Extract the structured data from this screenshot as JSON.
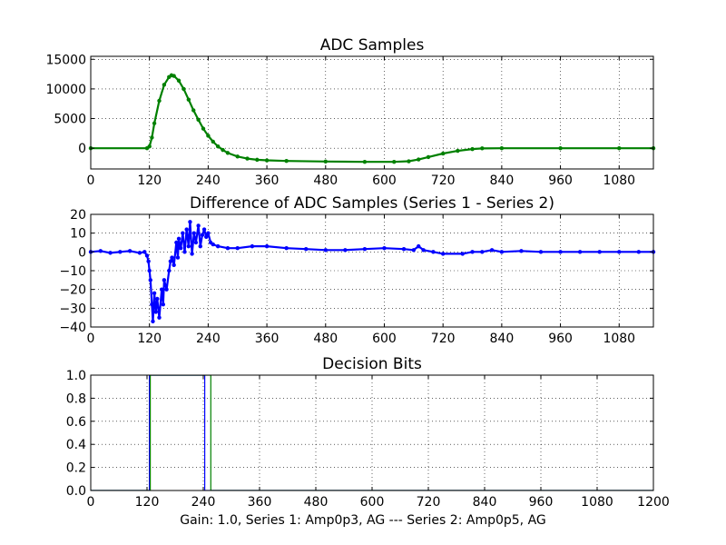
{
  "figure_footer": "Gain: 1.0, Series 1: Amp0p3, AG --- Series 2: Amp0p5, AG",
  "colors": {
    "green": "#008000",
    "blue": "#0000ff"
  },
  "chart_data": [
    {
      "type": "line",
      "title": "ADC Samples",
      "xlabel": "",
      "ylabel": "",
      "xlim": [
        0,
        1150
      ],
      "ylim": [
        -3500,
        15500
      ],
      "x_ticks": [
        0,
        120,
        240,
        360,
        480,
        600,
        720,
        840,
        960,
        1080
      ],
      "y_ticks": [
        0,
        5000,
        10000,
        15000
      ],
      "grid": true,
      "marker": "dot",
      "series": [
        {
          "color": "#008000",
          "points": [
            [
              0,
              0
            ],
            [
              115,
              0
            ],
            [
              120,
              300
            ],
            [
              125,
              1800
            ],
            [
              130,
              4200
            ],
            [
              140,
              8000
            ],
            [
              150,
              10700
            ],
            [
              160,
              12000
            ],
            [
              165,
              12300
            ],
            [
              170,
              12200
            ],
            [
              180,
              11400
            ],
            [
              190,
              10000
            ],
            [
              200,
              8200
            ],
            [
              210,
              6400
            ],
            [
              220,
              4800
            ],
            [
              230,
              3300
            ],
            [
              240,
              2100
            ],
            [
              250,
              1100
            ],
            [
              260,
              300
            ],
            [
              270,
              -300
            ],
            [
              280,
              -800
            ],
            [
              300,
              -1400
            ],
            [
              320,
              -1750
            ],
            [
              340,
              -1950
            ],
            [
              360,
              -2050
            ],
            [
              400,
              -2150
            ],
            [
              480,
              -2250
            ],
            [
              560,
              -2300
            ],
            [
              620,
              -2300
            ],
            [
              650,
              -2200
            ],
            [
              670,
              -1900
            ],
            [
              690,
              -1500
            ],
            [
              720,
              -900
            ],
            [
              750,
              -450
            ],
            [
              780,
              -150
            ],
            [
              800,
              -30
            ],
            [
              840,
              0
            ],
            [
              960,
              0
            ],
            [
              1080,
              0
            ],
            [
              1150,
              0
            ]
          ]
        }
      ]
    },
    {
      "type": "line",
      "title": "Difference of ADC Samples (Series 1 - Series 2)",
      "xlabel": "",
      "ylabel": "",
      "xlim": [
        0,
        1150
      ],
      "ylim": [
        -40,
        20
      ],
      "x_ticks": [
        0,
        120,
        240,
        360,
        480,
        600,
        720,
        840,
        960,
        1080
      ],
      "y_ticks": [
        -40,
        -30,
        -20,
        -10,
        0,
        10,
        20
      ],
      "grid": true,
      "marker": "dot",
      "series": [
        {
          "color": "#0000ff",
          "points": [
            [
              0,
              0
            ],
            [
              20,
              0.5
            ],
            [
              40,
              -0.5
            ],
            [
              60,
              0
            ],
            [
              80,
              0.5
            ],
            [
              100,
              -0.5
            ],
            [
              110,
              0
            ],
            [
              115,
              -2
            ],
            [
              118,
              -5
            ],
            [
              120,
              -10
            ],
            [
              122,
              -15
            ],
            [
              125,
              -28
            ],
            [
              127,
              -37
            ],
            [
              130,
              -22
            ],
            [
              133,
              -32
            ],
            [
              136,
              -25
            ],
            [
              140,
              -35
            ],
            [
              145,
              -20
            ],
            [
              148,
              -28
            ],
            [
              150,
              -15
            ],
            [
              155,
              -20
            ],
            [
              160,
              -10
            ],
            [
              163,
              -5
            ],
            [
              166,
              -3
            ],
            [
              170,
              -7
            ],
            [
              175,
              5
            ],
            [
              178,
              -3
            ],
            [
              180,
              7
            ],
            [
              184,
              2
            ],
            [
              188,
              10
            ],
            [
              192,
              0
            ],
            [
              196,
              12
            ],
            [
              200,
              3
            ],
            [
              203,
              16
            ],
            [
              207,
              -1
            ],
            [
              211,
              10
            ],
            [
              215,
              5
            ],
            [
              220,
              14
            ],
            [
              224,
              3
            ],
            [
              228,
              9
            ],
            [
              232,
              12
            ],
            [
              236,
              8
            ],
            [
              240,
              10
            ],
            [
              245,
              5
            ],
            [
              250,
              4
            ],
            [
              260,
              3
            ],
            [
              280,
              2
            ],
            [
              300,
              2
            ],
            [
              330,
              3
            ],
            [
              360,
              3
            ],
            [
              400,
              2
            ],
            [
              440,
              1.5
            ],
            [
              480,
              1
            ],
            [
              520,
              1
            ],
            [
              560,
              1.5
            ],
            [
              600,
              2
            ],
            [
              640,
              1.5
            ],
            [
              660,
              1
            ],
            [
              670,
              3
            ],
            [
              680,
              1
            ],
            [
              700,
              0
            ],
            [
              720,
              -1
            ],
            [
              760,
              -1
            ],
            [
              780,
              0
            ],
            [
              800,
              0
            ],
            [
              820,
              1
            ],
            [
              840,
              0
            ],
            [
              880,
              0.5
            ],
            [
              920,
              0
            ],
            [
              960,
              0
            ],
            [
              1000,
              0
            ],
            [
              1040,
              0
            ],
            [
              1080,
              0
            ],
            [
              1120,
              0
            ],
            [
              1150,
              0
            ]
          ]
        }
      ]
    },
    {
      "type": "line",
      "title": "Decision Bits",
      "xlabel": "",
      "ylabel": "",
      "xlim": [
        0,
        1200
      ],
      "ylim": [
        0,
        1
      ],
      "x_ticks": [
        0,
        120,
        240,
        360,
        480,
        600,
        720,
        840,
        960,
        1080,
        1200
      ],
      "y_ticks": [
        0.0,
        0.2,
        0.4,
        0.6,
        0.8,
        1.0
      ],
      "y_tick_labels": [
        "0.0",
        "0.2",
        "0.4",
        "0.6",
        "0.8",
        "1.0"
      ],
      "grid": true,
      "marker": "none",
      "series": [
        {
          "color": "#0000ff",
          "points": [
            [
              0,
              0
            ],
            [
              125,
              0
            ],
            [
              125,
              1
            ],
            [
              243,
              1
            ],
            [
              243,
              0
            ],
            [
              1200,
              0
            ]
          ]
        },
        {
          "color": "#008000",
          "points": [
            [
              0,
              0
            ],
            [
              127,
              0
            ],
            [
              127,
              1
            ],
            [
              256,
              1
            ],
            [
              256,
              0
            ],
            [
              1200,
              0
            ]
          ]
        }
      ]
    }
  ]
}
